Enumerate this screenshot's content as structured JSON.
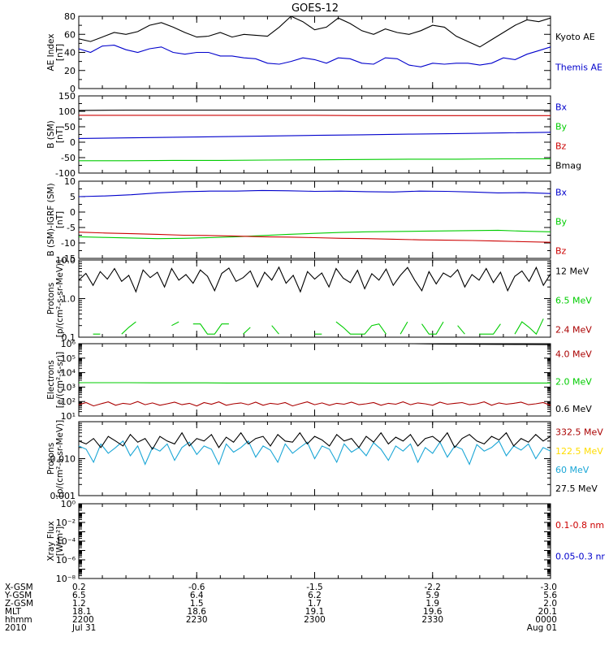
{
  "title": "GOES-12",
  "chart_data": [
    {
      "type": "line",
      "ylabel": [
        "AE Index",
        "[nT]"
      ],
      "ylim": [
        0,
        80
      ],
      "yticks": [
        0,
        20,
        40,
        60,
        80
      ],
      "ylog": false,
      "series": [
        {
          "name": "Kyoto AE",
          "color": "#000000",
          "y": [
            55,
            52,
            57,
            62,
            60,
            63,
            70,
            73,
            68,
            62,
            57,
            58,
            62,
            57,
            60,
            59,
            58,
            68,
            80,
            74,
            65,
            68,
            78,
            72,
            64,
            60,
            66,
            62,
            60,
            64,
            70,
            68,
            58,
            52,
            46,
            54,
            62,
            70,
            76,
            74,
            78
          ]
        },
        {
          "name": "Themis AE",
          "color": "#0000cc",
          "y": [
            44,
            40,
            47,
            48,
            43,
            40,
            44,
            46,
            40,
            38,
            40,
            40,
            36,
            36,
            34,
            33,
            28,
            27,
            30,
            34,
            32,
            28,
            34,
            33,
            28,
            27,
            34,
            33,
            26,
            24,
            28,
            27,
            28,
            28,
            26,
            28,
            34,
            32,
            38,
            42,
            46
          ]
        }
      ]
    },
    {
      "type": "line",
      "ylabel": [
        "B (SM)",
        "[nT]"
      ],
      "ylim": [
        -100,
        150
      ],
      "yticks": [
        -100,
        -50,
        0,
        50,
        100,
        150
      ],
      "ylog": false,
      "series": [
        {
          "name": "Bx",
          "color": "#0000cc",
          "y": [
            12,
            14,
            16,
            18,
            20,
            22,
            24,
            26,
            28,
            30,
            32
          ]
        },
        {
          "name": "By",
          "color": "#00cc00",
          "y": [
            -60,
            -60,
            -59,
            -59,
            -58,
            -57,
            -56,
            -55,
            -55,
            -54,
            -54
          ]
        },
        {
          "name": "Bz",
          "color": "#cc0000",
          "y": [
            87,
            87,
            87,
            87,
            87,
            87,
            86,
            86,
            86,
            86,
            86
          ]
        },
        {
          "name": "Bmag",
          "color": "#000000",
          "y": [
            103,
            104,
            104,
            104,
            104,
            104,
            104,
            104,
            104,
            104,
            104
          ]
        }
      ]
    },
    {
      "type": "line",
      "ylabel": [
        "B (SM)-IGRF (SM)",
        "[nT]"
      ],
      "ylim": [
        -15,
        10
      ],
      "yticks": [
        -15,
        -10,
        -5,
        0,
        5,
        10
      ],
      "ylog": false,
      "series": [
        {
          "name": "Bx",
          "color": "#0000cc",
          "y": [
            5.0,
            5.2,
            5.6,
            6.2,
            6.6,
            6.8,
            6.8,
            7.0,
            6.9,
            6.7,
            6.8,
            6.6,
            6.5,
            6.8,
            6.7,
            6.5,
            6.2,
            6.3,
            6.0
          ]
        },
        {
          "name": "By",
          "color": "#00cc00",
          "y": [
            -8.0,
            -8.2,
            -8.4,
            -8.6,
            -8.5,
            -8.3,
            -8.0,
            -7.6,
            -7.2,
            -6.9,
            -6.6,
            -6.4,
            -6.3,
            -6.2,
            -6.1,
            -6.0,
            -5.9,
            -6.2,
            -6.4
          ]
        },
        {
          "name": "Bz",
          "color": "#cc0000",
          "y": [
            -6.5,
            -6.8,
            -7.0,
            -7.2,
            -7.5,
            -7.6,
            -7.8,
            -8.0,
            -8.1,
            -8.3,
            -8.5,
            -8.6,
            -8.8,
            -9.0,
            -9.1,
            -9.2,
            -9.4,
            -9.6,
            -9.8
          ]
        }
      ]
    },
    {
      "type": "line",
      "ylabel": [
        "Protons",
        "[p/(cm²-s-sr-MeV)]"
      ],
      "ylim": [
        0.1,
        10.0
      ],
      "yticks": [
        0.1,
        1.0,
        10.0
      ],
      "yticklabels": [
        "0.1",
        "1.0",
        "10.0"
      ],
      "ylog": true,
      "series": [
        {
          "name": "12 MeV",
          "color": "#000000",
          "y": [
            3.0,
            4.5,
            2.2,
            5.0,
            3.2,
            6.0,
            2.8,
            4.0,
            1.5,
            5.5,
            3.5,
            4.8,
            2.0,
            6.0,
            3.0,
            4.2,
            2.5,
            5.5,
            3.8,
            1.6,
            4.5,
            6.2,
            2.8,
            3.5,
            5.2,
            2.0,
            4.8,
            3.0,
            6.5,
            2.5,
            4.0,
            1.5,
            5.0,
            3.2,
            4.6,
            2.0,
            6.0,
            3.4,
            2.6,
            5.4,
            1.8,
            4.4,
            3.0,
            5.8,
            2.2,
            4.0,
            6.4,
            3.0,
            1.6,
            5.0,
            2.4,
            4.6,
            3.6,
            5.6,
            2.0,
            4.2,
            3.0,
            6.0,
            2.6,
            4.8,
            1.6,
            3.8,
            5.2,
            2.8,
            6.4,
            2.2,
            4.4
          ]
        },
        {
          "name": "6.5 MeV",
          "color": "#00cc00",
          "y": [
            null,
            null,
            0.12,
            0.12,
            null,
            null,
            0.12,
            0.18,
            0.25,
            null,
            null,
            0.12,
            null,
            0.2,
            0.25,
            null,
            0.22,
            0.22,
            0.12,
            0.12,
            0.22,
            0.22,
            null,
            0.12,
            0.18,
            null,
            null,
            0.2,
            0.12,
            null,
            0.22,
            null,
            null,
            0.12,
            0.12,
            null,
            0.25,
            0.18,
            0.12,
            0.12,
            0.12,
            0.2,
            0.22,
            0.12,
            null,
            0.12,
            0.25,
            null,
            0.22,
            0.12,
            0.12,
            0.25,
            null,
            0.2,
            0.12,
            null,
            0.12,
            0.12,
            0.12,
            0.22,
            null,
            0.12,
            0.25,
            0.18,
            0.12,
            0.3,
            null
          ]
        },
        {
          "name": "2.4 MeV",
          "color": "#aa0000",
          "y": []
        }
      ]
    },
    {
      "type": "line",
      "ylabel": [
        "Electrons",
        "[e/(cm²-s-sr)]"
      ],
      "ylim": [
        10,
        1000000
      ],
      "yticks": [
        10,
        100,
        1000,
        10000,
        100000,
        1000000
      ],
      "yticklabels": [
        "10¹",
        "10²",
        "10³",
        "10⁴",
        "10⁵",
        "10⁶"
      ],
      "ylog": true,
      "series": [
        {
          "name": "4.0 MeV",
          "color": "#aa0000",
          "y": [
            60,
            85,
            50,
            70,
            95,
            55,
            75,
            65,
            100,
            60,
            80,
            55,
            70,
            90,
            60,
            75,
            50,
            85,
            65,
            95,
            55,
            70,
            80,
            60,
            90,
            55,
            75,
            65,
            85,
            50,
            70,
            95,
            60,
            80,
            55,
            75,
            65,
            90,
            60,
            70,
            85,
            55,
            75,
            65,
            95,
            60,
            80,
            70,
            55,
            90,
            65,
            75,
            85,
            60,
            70,
            95,
            55,
            80,
            65,
            75,
            90,
            60,
            70,
            85,
            55
          ]
        },
        {
          "name": "2.0 MeV",
          "color": "#00cc00",
          "y": [
            2000,
            2000,
            2000,
            1950,
            1950,
            1950,
            1900,
            1900,
            1900,
            1900,
            1900,
            1900,
            1850,
            1850,
            1850,
            1900,
            1900,
            1900,
            1900,
            1900
          ]
        },
        {
          "name": "0.6 MeV",
          "color": "#000000",
          "y": [
            1000000,
            1000000,
            1000000,
            1000000,
            1000000,
            1000000,
            1000000,
            1000000,
            1000000,
            1000000,
            1000000,
            1000000,
            1000000,
            950000,
            930000,
            900000,
            880000,
            860000
          ]
        }
      ]
    },
    {
      "type": "line",
      "ylabel": [
        "Protons",
        "[p/(cm²-s-sr-MeV)]"
      ],
      "ylim": [
        0.001,
        0.1
      ],
      "yticks": [
        0.001,
        0.01,
        0.1
      ],
      "yticklabels": [
        "0.001",
        "0.010",
        ""
      ],
      "ylog": true,
      "series": [
        {
          "name": "332.5 MeV",
          "color": "#aa0000",
          "y": []
        },
        {
          "name": "122.5 MeV",
          "color": "#ffdd00",
          "y": []
        },
        {
          "name": "60 MeV",
          "color": "#1aa6d6",
          "y": [
            0.022,
            0.018,
            0.008,
            0.025,
            0.014,
            0.02,
            0.03,
            0.012,
            0.022,
            0.007,
            0.02,
            0.016,
            0.025,
            0.009,
            0.02,
            0.028,
            0.013,
            0.022,
            0.018,
            0.007,
            0.025,
            0.015,
            0.02,
            0.03,
            0.011,
            0.022,
            0.017,
            0.008,
            0.025,
            0.014,
            0.02,
            0.028,
            0.01,
            0.022,
            0.018,
            0.008,
            0.025,
            0.015,
            0.02,
            0.012,
            0.027,
            0.018,
            0.009,
            0.022,
            0.016,
            0.025,
            0.008,
            0.02,
            0.014,
            0.028,
            0.011,
            0.022,
            0.018,
            0.007,
            0.024,
            0.016,
            0.02,
            0.03,
            0.012,
            0.022,
            0.017,
            0.025,
            0.01,
            0.02,
            0.016
          ]
        },
        {
          "name": "27.5 MeV",
          "color": "#000000",
          "y": [
            0.03,
            0.025,
            0.035,
            0.02,
            0.04,
            0.03,
            0.022,
            0.045,
            0.028,
            0.035,
            0.018,
            0.04,
            0.03,
            0.025,
            0.05,
            0.022,
            0.035,
            0.03,
            0.045,
            0.02,
            0.038,
            0.028,
            0.05,
            0.025,
            0.035,
            0.04,
            0.022,
            0.045,
            0.03,
            0.028,
            0.05,
            0.025,
            0.04,
            0.032,
            0.022,
            0.045,
            0.03,
            0.035,
            0.02,
            0.04,
            0.028,
            0.05,
            0.025,
            0.038,
            0.03,
            0.045,
            0.022,
            0.035,
            0.04,
            0.028,
            0.05,
            0.02,
            0.035,
            0.045,
            0.03,
            0.025,
            0.04,
            0.032,
            0.05,
            0.022,
            0.035,
            0.028,
            0.045,
            0.03,
            0.04
          ]
        }
      ]
    },
    {
      "type": "line",
      "ylabel": [
        "Xray Flux",
        "[W/m²]"
      ],
      "ylim": [
        1e-08,
        1
      ],
      "yticks": [
        1e-08,
        1e-07,
        1e-06,
        1e-05,
        0.0001,
        0.001,
        0.01,
        0.1,
        1
      ],
      "yticklabels": [
        "10⁻⁸",
        "",
        "10⁻⁶",
        "",
        "10⁻⁴",
        "",
        "10⁻²",
        "",
        "10⁰"
      ],
      "ylog": true,
      "series": [
        {
          "name": "0.1-0.8 nm",
          "color": "#cc0000",
          "y": []
        },
        {
          "name": "0.05-0.3 nr",
          "color": "#0000cc",
          "y": []
        }
      ]
    }
  ],
  "footer": {
    "labels": [
      "X-GSM",
      "Y-GSM",
      "Z-GSM",
      "MLT",
      "hhmm",
      "2010"
    ],
    "columns": [
      [
        "0.2",
        "6.5",
        "1.2",
        "18.1",
        "2200",
        "Jul 31"
      ],
      [
        "-0.6",
        "6.4",
        "1.5",
        "18.6",
        "2230",
        ""
      ],
      [
        "-1.5",
        "6.2",
        "1.7",
        "19.1",
        "2300",
        ""
      ],
      [
        "-2.2",
        "5.9",
        "1.9",
        "19.6",
        "2330",
        ""
      ],
      [
        "-3.0",
        "5.6",
        "2.0",
        "20.1",
        "0000",
        "Aug 01"
      ]
    ]
  }
}
